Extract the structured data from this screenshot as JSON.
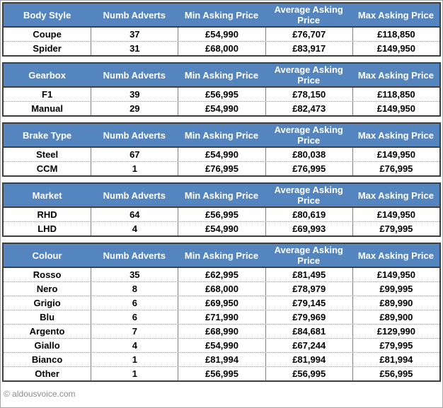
{
  "page": {
    "footer_copyright": "© aldousvoice.com"
  },
  "colors": {
    "header_bg": "#5585BE",
    "header_text": "#FFFFFF",
    "table_border": "#3F3F3F",
    "column_line": "#7F7F7F",
    "row_dotted_line": "#999999",
    "data_text": "#000000",
    "footer_text": "#8C8C8C",
    "frame_border": "#A6A6A6"
  },
  "chart_data": [
    {
      "type": "table",
      "title": "Body Style",
      "columns": [
        "Body Style",
        "Numb Adverts",
        "Min Asking Price",
        "Average Asking Price",
        "Max Asking Price"
      ],
      "rows": [
        [
          "Coupe",
          "37",
          "£54,990",
          "£76,707",
          "£118,850"
        ],
        [
          "Spider",
          "31",
          "£68,000",
          "£83,917",
          "£149,950"
        ]
      ]
    },
    {
      "type": "table",
      "title": "Gearbox",
      "columns": [
        "Gearbox",
        "Numb Adverts",
        "Min Asking Price",
        "Average Asking Price",
        "Max Asking Price"
      ],
      "rows": [
        [
          "F1",
          "39",
          "£56,995",
          "£78,150",
          "£118,850"
        ],
        [
          "Manual",
          "29",
          "£54,990",
          "£82,473",
          "£149,950"
        ]
      ]
    },
    {
      "type": "table",
      "title": "Brake Type",
      "columns": [
        "Brake Type",
        "Numb Adverts",
        "Min Asking Price",
        "Average Asking Price",
        "Max Asking Price"
      ],
      "rows": [
        [
          "Steel",
          "67",
          "£54,990",
          "£80,038",
          "£149,950"
        ],
        [
          "CCM",
          "1",
          "£76,995",
          "£76,995",
          "£76,995"
        ]
      ]
    },
    {
      "type": "table",
      "title": "Market",
      "columns": [
        "Market",
        "Numb Adverts",
        "Min Asking Price",
        "Average Asking Price",
        "Max Asking Price"
      ],
      "rows": [
        [
          "RHD",
          "64",
          "£56,995",
          "£80,619",
          "£149,950"
        ],
        [
          "LHD",
          "4",
          "£54,990",
          "£69,993",
          "£79,995"
        ]
      ]
    },
    {
      "type": "table",
      "title": "Colour",
      "columns": [
        "Colour",
        "Numb Adverts",
        "Min Asking Price",
        "Average Asking Price",
        "Max Asking Price"
      ],
      "rows": [
        [
          "Rosso",
          "35",
          "£62,995",
          "£81,495",
          "£149,950"
        ],
        [
          "Nero",
          "8",
          "£68,000",
          "£78,979",
          "£99,995"
        ],
        [
          "Grigio",
          "6",
          "£69,950",
          "£79,145",
          "£89,990"
        ],
        [
          "Blu",
          "6",
          "£71,990",
          "£79,969",
          "£89,900"
        ],
        [
          "Argento",
          "7",
          "£68,990",
          "£84,681",
          "£129,990"
        ],
        [
          "Giallo",
          "4",
          "£54,990",
          "£67,244",
          "£79,995"
        ],
        [
          "Bianco",
          "1",
          "£81,994",
          "£81,994",
          "£81,994"
        ],
        [
          "Other",
          "1",
          "£56,995",
          "£56,995",
          "£56,995"
        ]
      ]
    }
  ]
}
